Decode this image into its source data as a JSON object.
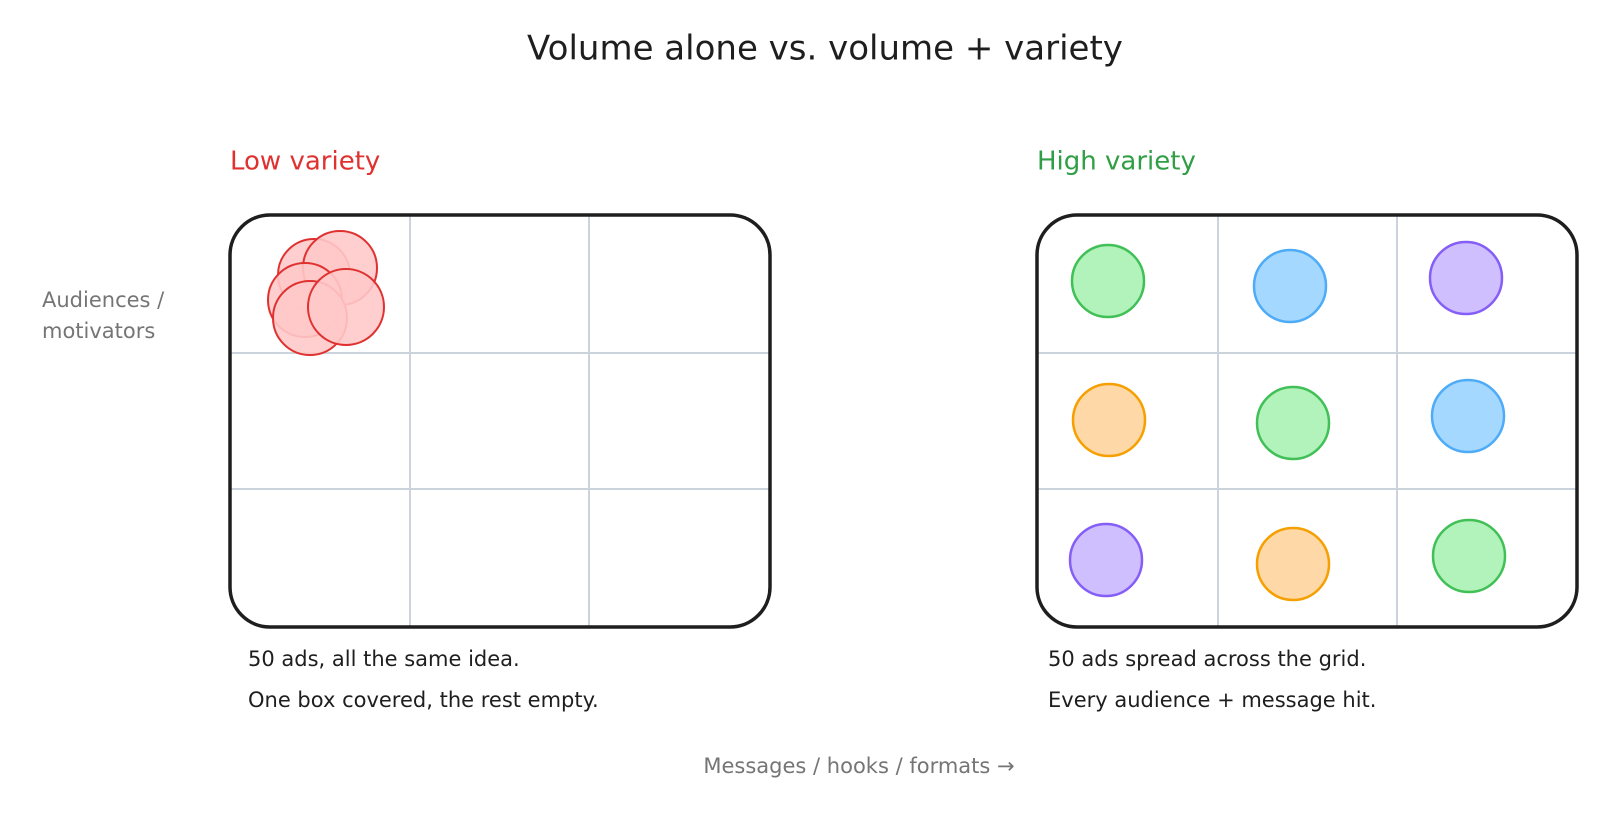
{
  "title": "Volume alone vs. volume + variety",
  "y_axis_label": [
    "Audiences /",
    "motivators"
  ],
  "x_axis_label": "Messages / hooks / formats  →",
  "panels": [
    {
      "label": "Low variety",
      "caption": [
        "50 ads, all the same idea.",
        "One box covered, the rest empty."
      ]
    },
    {
      "label": "High variety",
      "caption": [
        "50 ads spread across the grid.",
        "Every audience + message hit."
      ]
    }
  ]
}
